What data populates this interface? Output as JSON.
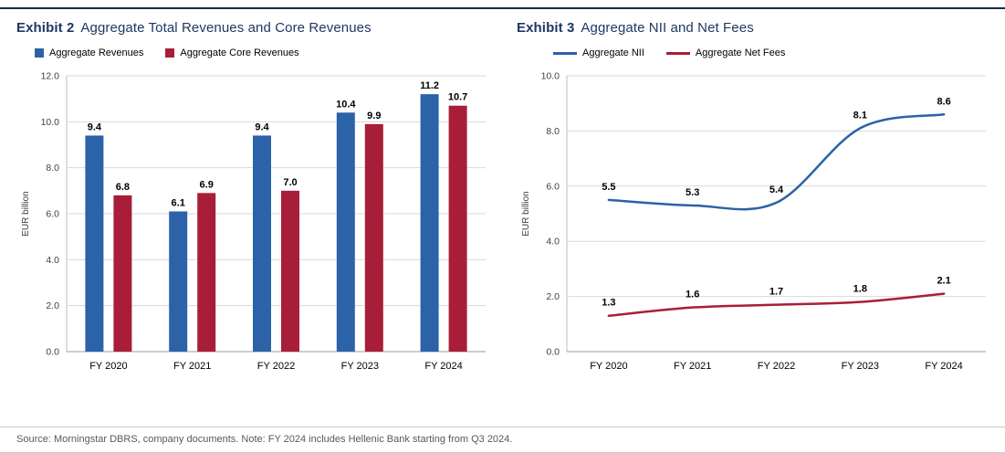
{
  "footer": {
    "source": "Source: Morningstar DBRS, company documents. Note: FY 2024 includes Hellenic Bank starting from Q3 2024."
  },
  "chart_data": [
    {
      "type": "bar",
      "exhibit": "Exhibit 2",
      "title": "Aggregate Total Revenues and Core Revenues",
      "ylabel": "EUR billion",
      "ylim": [
        0,
        12
      ],
      "ytick_step": 2,
      "grid": true,
      "legend_position": "top",
      "categories": [
        "FY 2020",
        "FY 2021",
        "FY 2022",
        "FY 2023",
        "FY 2024"
      ],
      "series": [
        {
          "name": "Aggregate Revenues",
          "color": "#2c62a8",
          "values": [
            9.4,
            6.1,
            9.4,
            10.4,
            11.2
          ]
        },
        {
          "name": "Aggregate Core Revenues",
          "color": "#a81e38",
          "values": [
            6.8,
            6.9,
            7.0,
            9.9,
            10.7
          ]
        }
      ]
    },
    {
      "type": "line",
      "exhibit": "Exhibit 3",
      "title": "Aggregate NII and Net Fees",
      "ylabel": "EUR billion",
      "ylim": [
        0,
        10
      ],
      "ytick_step": 2,
      "grid": true,
      "legend_position": "top",
      "categories": [
        "FY 2020",
        "FY 2021",
        "FY 2022",
        "FY 2023",
        "FY 2024"
      ],
      "series": [
        {
          "name": "Aggregate NII",
          "color": "#2c62a8",
          "values": [
            5.5,
            5.3,
            5.4,
            8.1,
            8.6
          ]
        },
        {
          "name": "Aggregate Net Fees",
          "color": "#a81e38",
          "values": [
            1.3,
            1.6,
            1.7,
            1.8,
            2.1
          ]
        }
      ]
    }
  ]
}
